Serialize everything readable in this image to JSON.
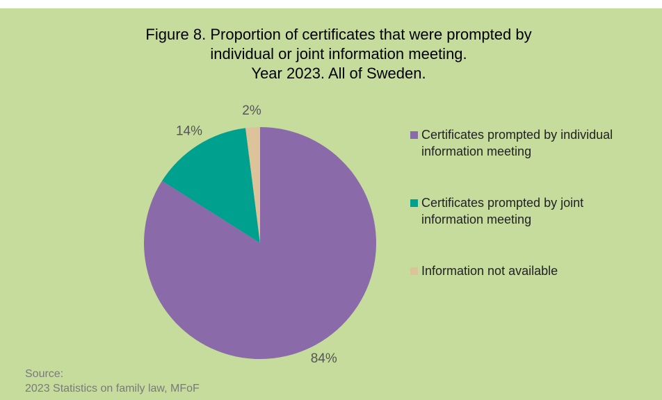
{
  "chart_data": {
    "type": "pie",
    "title": "Figure 8. Proportion of certificates that were prompted by\nindividual or joint information meeting.\nYear 2023. All of Sweden.",
    "categories": [
      "Certificates prompted by individual information meeting",
      "Certificates prompted by joint information meeting",
      "Information not available"
    ],
    "values": [
      84,
      14,
      2
    ],
    "value_labels": [
      "84%",
      "14%",
      "2%"
    ],
    "colors": [
      "#8a6aa8",
      "#00a08e",
      "#dcc39a"
    ],
    "legend": "right",
    "source": "Source:\n2023 Statistics on family law, MFoF"
  }
}
